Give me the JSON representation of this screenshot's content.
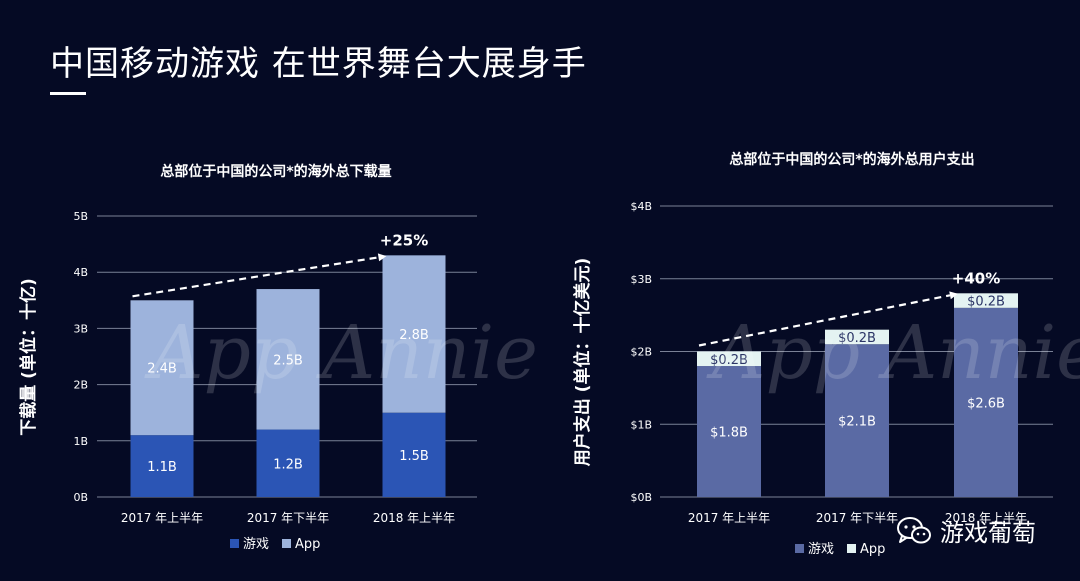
{
  "page": {
    "title": "中国移动游戏 在世界舞台大展身手",
    "watermark": "App Annie",
    "brand": "游戏葡萄",
    "brand_icon": "wechat-icon"
  },
  "colors": {
    "background": "#050a24",
    "downloads_game": "#2b55b5",
    "downloads_app": "#9db3dc",
    "spend_game": "#5a6aa4",
    "spend_app": "#e4f3f2",
    "grid": "#7a8196",
    "text": "#ffffff"
  },
  "chart_data": [
    {
      "type": "bar",
      "stacked": true,
      "title": "总部位于中国的公司*的海外总下载量",
      "ylabel": "下载量 (单位：十亿)",
      "xlabel": "",
      "categories": [
        "2017 年上半年",
        "2017 年下半年",
        "2018 年上半年"
      ],
      "series": [
        {
          "name": "游戏",
          "values": [
            1.1,
            1.2,
            1.5
          ],
          "labels": [
            "1.1B",
            "1.2B",
            "1.5B"
          ]
        },
        {
          "name": "App",
          "values": [
            2.4,
            2.5,
            2.8
          ],
          "labels": [
            "2.4B",
            "2.5B",
            "2.8B"
          ]
        }
      ],
      "yticks": [
        0,
        1,
        2,
        3,
        4,
        5
      ],
      "ytick_labels": [
        "0B",
        "1B",
        "2B",
        "3B",
        "4B",
        "5B"
      ],
      "ylim": [
        0,
        5
      ],
      "annotation": "+25%",
      "legend": "bottom"
    },
    {
      "type": "bar",
      "stacked": true,
      "title": "总部位于中国的公司*的海外总用户支出",
      "ylabel": "用户支出 (单位：十亿美元)",
      "xlabel": "",
      "categories": [
        "2017 年上半年",
        "2017 年下半年",
        "2018 年上半年"
      ],
      "series": [
        {
          "name": "游戏",
          "values": [
            1.8,
            2.1,
            2.6
          ],
          "labels": [
            "$1.8B",
            "$2.1B",
            "$2.6B"
          ]
        },
        {
          "name": "App",
          "values": [
            0.2,
            0.2,
            0.2
          ],
          "labels": [
            "$0.2B",
            "$0.2B",
            "$0.2B"
          ]
        }
      ],
      "yticks": [
        0,
        1,
        2,
        3,
        4
      ],
      "ytick_labels": [
        "$0B",
        "$1B",
        "$2B",
        "$3B",
        "$4B"
      ],
      "ylim": [
        0,
        4
      ],
      "annotation": "+40%",
      "legend": "bottom"
    }
  ]
}
